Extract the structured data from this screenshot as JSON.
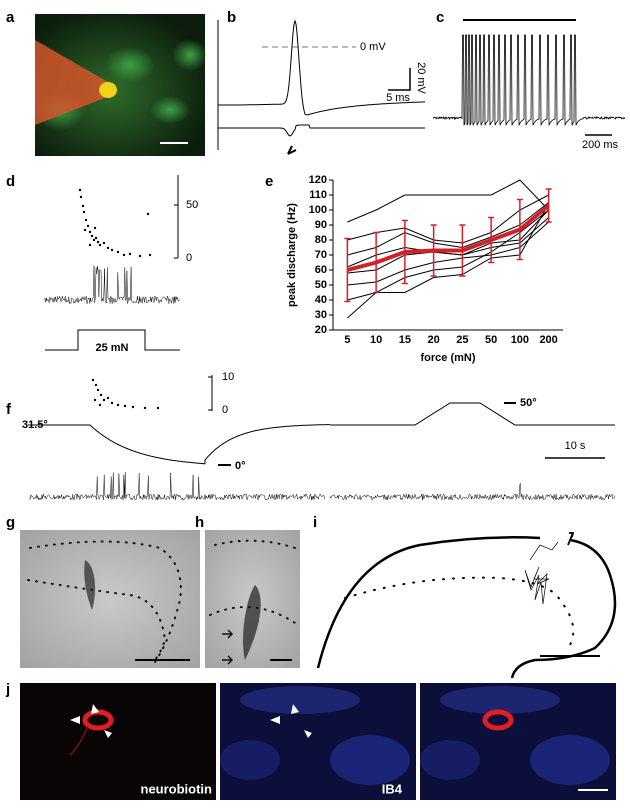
{
  "panels": {
    "labels": [
      "a",
      "b",
      "c",
      "d",
      "e",
      "f",
      "g",
      "h",
      "i",
      "j"
    ],
    "b": {
      "zero": "0 mV",
      "volt": "20 mV",
      "time": "5 ms"
    },
    "c": {
      "time": "200 ms"
    },
    "d": {
      "tick_high": "50",
      "tick_low": "0",
      "stimulus": "25 mN"
    },
    "f": {
      "tick_high": "10",
      "tick_low": "0",
      "start_temp": "31.5°",
      "cold": "0°",
      "hot": "50°",
      "time": "10 s"
    },
    "j": {
      "left": "neurobiotin",
      "middle": "IB4"
    }
  },
  "chart_data": {
    "type": "line",
    "ylabel": "peak discharge (Hz)",
    "xlabel": "force (mN)",
    "categories": [
      "5",
      "10",
      "15",
      "20",
      "25",
      "50",
      "100",
      "200"
    ],
    "ylim": [
      20,
      120
    ],
    "yticks": [
      20,
      30,
      40,
      50,
      60,
      70,
      80,
      90,
      100,
      110,
      120
    ],
    "series": [
      {
        "color": "#d32027",
        "values": [
          60,
          65,
          72,
          73,
          73,
          80,
          87,
          103
        ],
        "errors": [
          21,
          20,
          21,
          17,
          17,
          15,
          20,
          11
        ]
      },
      {
        "color": "#000000",
        "values": [
          92,
          100,
          110,
          110,
          110,
          110,
          120,
          100
        ]
      },
      {
        "color": "#000000",
        "values": [
          80,
          85,
          88,
          80,
          78,
          85,
          100,
          110
        ]
      },
      {
        "color": "#000000",
        "values": [
          70,
          75,
          85,
          78,
          75,
          82,
          90,
          105
        ]
      },
      {
        "color": "#000000",
        "values": [
          62,
          70,
          75,
          72,
          70,
          78,
          80,
          100
        ]
      },
      {
        "color": "#000000",
        "values": [
          58,
          60,
          70,
          72,
          70,
          75,
          78,
          95
        ]
      },
      {
        "color": "#000000",
        "values": [
          50,
          52,
          60,
          65,
          68,
          70,
          75,
          92
        ]
      },
      {
        "color": "#000000",
        "values": [
          40,
          45,
          55,
          60,
          62,
          72,
          85,
          100
        ]
      },
      {
        "color": "#000000",
        "values": [
          28,
          45,
          45,
          55,
          57,
          68,
          70,
          104
        ]
      }
    ]
  }
}
